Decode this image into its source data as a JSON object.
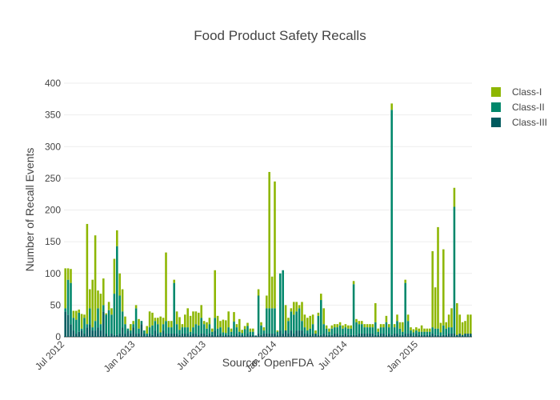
{
  "chart_data": {
    "type": "bar",
    "barmode": "stack",
    "title": "Food Product Safety Recalls",
    "xlabel": "Source: OpenFDA",
    "ylabel": "Number of Recall Events",
    "ylim": [
      0,
      400
    ],
    "yticks": [
      0,
      50,
      100,
      150,
      200,
      250,
      300,
      350,
      400
    ],
    "xticks": [
      "Jul 2012",
      "Jan 2013",
      "Jul 2013",
      "Jan 2014",
      "Jul 2014",
      "Jan 2015"
    ],
    "xtick_weeks": [
      0,
      26,
      52,
      78,
      104,
      130
    ],
    "grid": true,
    "legend_position": "top-right",
    "colors": {
      "Class-I": "#8db600",
      "Class-II": "#00876b",
      "Class-III": "#005a5e"
    },
    "x": [
      "2012-06-25",
      "2012-07-02",
      "2012-07-09",
      "2012-07-16",
      "2012-07-23",
      "2012-07-30",
      "2012-08-06",
      "2012-08-13",
      "2012-08-20",
      "2012-08-27",
      "2012-09-03",
      "2012-09-10",
      "2012-09-17",
      "2012-09-24",
      "2012-10-01",
      "2012-10-08",
      "2012-10-15",
      "2012-10-22",
      "2012-10-29",
      "2012-11-05",
      "2012-11-12",
      "2012-11-19",
      "2012-11-26",
      "2012-12-03",
      "2012-12-10",
      "2012-12-17",
      "2012-12-24",
      "2012-12-31",
      "2013-01-07",
      "2013-01-14",
      "2013-01-21",
      "2013-01-28",
      "2013-02-04",
      "2013-02-11",
      "2013-02-18",
      "2013-02-25",
      "2013-03-04",
      "2013-03-11",
      "2013-03-18",
      "2013-03-25",
      "2013-04-01",
      "2013-04-08",
      "2013-04-15",
      "2013-04-22",
      "2013-04-29",
      "2013-05-06",
      "2013-05-13",
      "2013-05-20",
      "2013-05-27",
      "2013-06-03",
      "2013-06-10",
      "2013-06-17",
      "2013-06-24",
      "2013-07-01",
      "2013-07-08",
      "2013-07-15",
      "2013-07-22",
      "2013-07-29",
      "2013-08-05",
      "2013-08-12",
      "2013-08-19",
      "2013-08-26",
      "2013-09-02",
      "2013-09-09",
      "2013-09-16",
      "2013-09-23",
      "2013-09-30",
      "2013-10-07",
      "2013-10-14",
      "2013-10-21",
      "2013-10-28",
      "2013-11-04",
      "2013-11-11",
      "2013-11-18",
      "2013-11-25",
      "2013-12-02",
      "2013-12-09",
      "2013-12-16",
      "2013-12-23",
      "2013-12-30",
      "2014-01-06",
      "2014-01-13",
      "2014-01-20",
      "2014-01-27",
      "2014-02-03",
      "2014-02-10",
      "2014-02-17",
      "2014-02-24",
      "2014-03-03",
      "2014-03-10",
      "2014-03-17",
      "2014-03-24",
      "2014-03-31",
      "2014-04-07",
      "2014-04-14",
      "2014-04-21",
      "2014-04-28",
      "2014-05-05",
      "2014-05-12",
      "2014-05-19",
      "2014-05-26",
      "2014-06-02",
      "2014-06-09",
      "2014-06-16",
      "2014-06-23",
      "2014-06-30",
      "2014-07-07",
      "2014-07-14",
      "2014-07-21",
      "2014-07-28",
      "2014-08-04",
      "2014-08-11",
      "2014-08-18",
      "2014-08-25",
      "2014-09-01",
      "2014-09-08",
      "2014-09-15",
      "2014-09-22",
      "2014-09-29",
      "2014-10-06",
      "2014-10-13",
      "2014-10-20",
      "2014-10-27",
      "2014-11-03",
      "2014-11-10",
      "2014-11-17",
      "2014-11-24",
      "2014-12-01",
      "2014-12-08",
      "2014-12-15",
      "2014-12-22",
      "2014-12-29",
      "2015-01-05",
      "2015-01-12",
      "2015-01-19",
      "2015-01-26",
      "2015-02-02",
      "2015-02-09",
      "2015-02-16",
      "2015-02-23",
      "2015-03-02",
      "2015-03-09",
      "2015-03-16",
      "2015-03-23",
      "2015-03-30",
      "2015-04-06",
      "2015-04-13",
      "2015-04-20",
      "2015-04-27",
      "2015-05-04"
    ],
    "series": [
      {
        "name": "Class-III",
        "values": [
          40,
          35,
          20,
          10,
          5,
          8,
          10,
          5,
          15,
          20,
          10,
          10,
          15,
          10,
          40,
          5,
          2,
          5,
          3,
          3,
          5,
          15,
          5,
          10,
          5,
          15,
          5,
          5,
          20,
          5,
          2,
          5,
          3,
          10,
          5,
          2,
          10,
          5,
          5,
          5,
          5,
          5,
          3,
          5,
          5,
          5,
          3,
          5,
          5,
          3,
          5,
          5,
          3,
          5,
          3,
          10,
          3,
          5,
          2,
          3,
          3,
          3,
          2,
          5,
          3,
          3,
          2,
          5,
          3,
          3,
          2,
          5,
          3,
          5,
          5,
          5,
          5,
          5,
          3,
          10,
          5,
          10,
          5,
          10,
          5,
          10,
          10,
          10,
          5,
          5,
          3,
          5,
          5,
          3,
          3,
          5,
          3,
          3,
          3,
          5,
          5,
          3,
          3,
          5,
          3,
          3,
          3,
          3,
          5,
          5,
          5,
          5,
          5,
          5,
          3,
          3,
          5,
          5,
          3,
          5,
          3,
          5,
          5,
          3,
          3,
          5,
          5,
          5,
          2,
          5,
          3,
          3,
          3,
          3,
          3,
          5,
          3,
          3,
          2,
          3,
          3,
          5,
          5,
          5,
          3,
          5,
          3,
          5,
          5,
          5
        ]
      },
      {
        "name": "Class-II",
        "values": [
          5,
          55,
          65,
          20,
          22,
          30,
          3,
          25,
          5,
          25,
          5,
          15,
          30,
          10,
          10,
          30,
          40,
          30,
          65,
          140,
          60,
          25,
          15,
          3,
          5,
          5,
          40,
          8,
          5,
          5,
          3,
          10,
          15,
          15,
          15,
          5,
          10,
          20,
          10,
          10,
          80,
          15,
          8,
          10,
          10,
          10,
          5,
          10,
          15,
          15,
          25,
          15,
          10,
          15,
          5,
          20,
          10,
          10,
          5,
          3,
          12,
          5,
          22,
          10,
          5,
          3,
          10,
          12,
          5,
          5,
          0,
          60,
          15,
          5,
          40,
          40,
          40,
          40,
          5,
          90,
          100,
          0,
          20,
          30,
          30,
          30,
          35,
          15,
          10,
          5,
          10,
          15,
          0,
          30,
          55,
          15,
          10,
          5,
          10,
          10,
          10,
          15,
          10,
          10,
          10,
          10,
          80,
          20,
          15,
          15,
          10,
          10,
          10,
          10,
          20,
          5,
          10,
          10,
          20,
          10,
          355,
          10,
          20,
          10,
          5,
          80,
          20,
          5,
          5,
          5,
          5,
          5,
          5,
          5,
          5,
          10,
          10,
          10,
          5,
          15,
          10,
          10,
          10,
          200,
          0,
          0,
          0,
          0,
          0,
          0
        ]
      },
      {
        "name": "Class-I",
        "values": [
          63,
          18,
          22,
          11,
          14,
          5,
          23,
          5,
          158,
          30,
          75,
          135,
          28,
          48,
          42,
          2,
          13,
          10,
          55,
          25,
          35,
          35,
          12,
          0,
          10,
          5,
          5,
          15,
          0,
          0,
          12,
          25,
          20,
          5,
          10,
          25,
          10,
          108,
          10,
          10,
          5,
          20,
          20,
          5,
          20,
          30,
          25,
          25,
          20,
          20,
          20,
          5,
          10,
          10,
          5,
          75,
          20,
          10,
          20,
          20,
          25,
          5,
          15,
          5,
          20,
          5,
          5,
          5,
          5,
          5,
          0,
          10,
          5,
          5,
          20,
          215,
          50,
          200,
          2,
          0,
          0,
          40,
          5,
          5,
          20,
          15,
          5,
          30,
          20,
          20,
          20,
          15,
          5,
          5,
          10,
          25,
          5,
          5,
          5,
          5,
          5,
          5,
          5,
          5,
          5,
          5,
          5,
          5,
          5,
          5,
          5,
          5,
          5,
          5,
          30,
          5,
          5,
          5,
          10,
          5,
          10,
          5,
          10,
          10,
          15,
          5,
          10,
          5,
          5,
          5,
          5,
          10,
          5,
          5,
          5,
          120,
          65,
          160,
          15,
          120,
          10,
          20,
          30,
          30,
          50,
          30,
          20,
          20,
          30,
          30
        ]
      }
    ]
  }
}
